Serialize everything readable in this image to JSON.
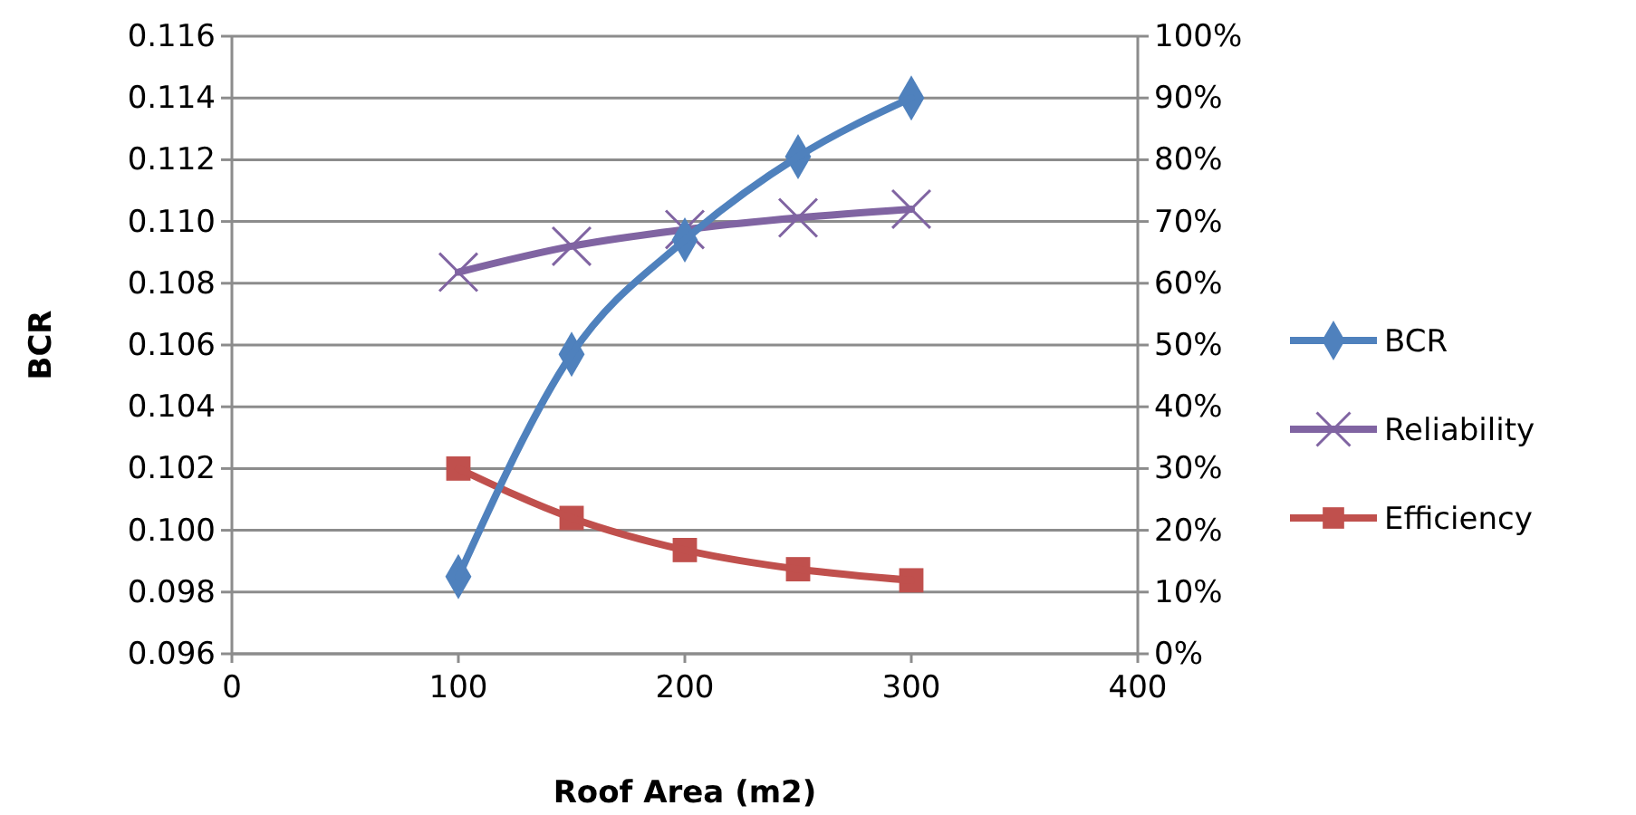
{
  "chart_data": {
    "type": "line",
    "xlabel": "Roof Area (m2)",
    "ylabel": "BCR",
    "x": [
      100,
      150,
      200,
      250,
      300
    ],
    "xlim": [
      0,
      400
    ],
    "xticks": [
      0,
      100,
      200,
      300,
      400
    ],
    "ylim": [
      0.096,
      0.116
    ],
    "yticks": [
      {
        "value": 0.096,
        "label": "0.096"
      },
      {
        "value": 0.098,
        "label": "0.098"
      },
      {
        "value": 0.1,
        "label": "0.100"
      },
      {
        "value": 0.102,
        "label": "0.102"
      },
      {
        "value": 0.104,
        "label": "0.104"
      },
      {
        "value": 0.106,
        "label": "0.106"
      },
      {
        "value": 0.108,
        "label": "0.108"
      },
      {
        "value": 0.11,
        "label": "0.110"
      },
      {
        "value": 0.112,
        "label": "0.112"
      },
      {
        "value": 0.114,
        "label": "0.114"
      },
      {
        "value": 0.116,
        "label": "0.116"
      }
    ],
    "y2lim": [
      0,
      100
    ],
    "y2ticks": [
      {
        "value": 0,
        "label": "0%"
      },
      {
        "value": 10,
        "label": "10%"
      },
      {
        "value": 20,
        "label": "20%"
      },
      {
        "value": 30,
        "label": "30%"
      },
      {
        "value": 40,
        "label": "40%"
      },
      {
        "value": 50,
        "label": "50%"
      },
      {
        "value": 60,
        "label": "60%"
      },
      {
        "value": 70,
        "label": "70%"
      },
      {
        "value": 80,
        "label": "80%"
      },
      {
        "value": 90,
        "label": "90%"
      },
      {
        "value": 100,
        "label": "100%"
      }
    ],
    "grid": "y",
    "legend": "right",
    "marker": "diamond",
    "series": [
      {
        "name": "BCR",
        "color": "#4f81bd",
        "values": [
          0.0985,
          0.1057,
          0.1094,
          0.1121,
          0.114
        ]
      },
      {
        "name": "Reliability",
        "color": "#8064a2",
        "marker": "cross",
        "axis": "y2",
        "values": [
          61.8,
          66,
          68.7,
          70.6,
          72
        ]
      },
      {
        "name": "Efficiency",
        "color": "#c0504d",
        "marker": "square",
        "axis": "y2",
        "values": [
          30,
          22,
          16.8,
          13.7,
          11.9
        ]
      }
    ]
  }
}
